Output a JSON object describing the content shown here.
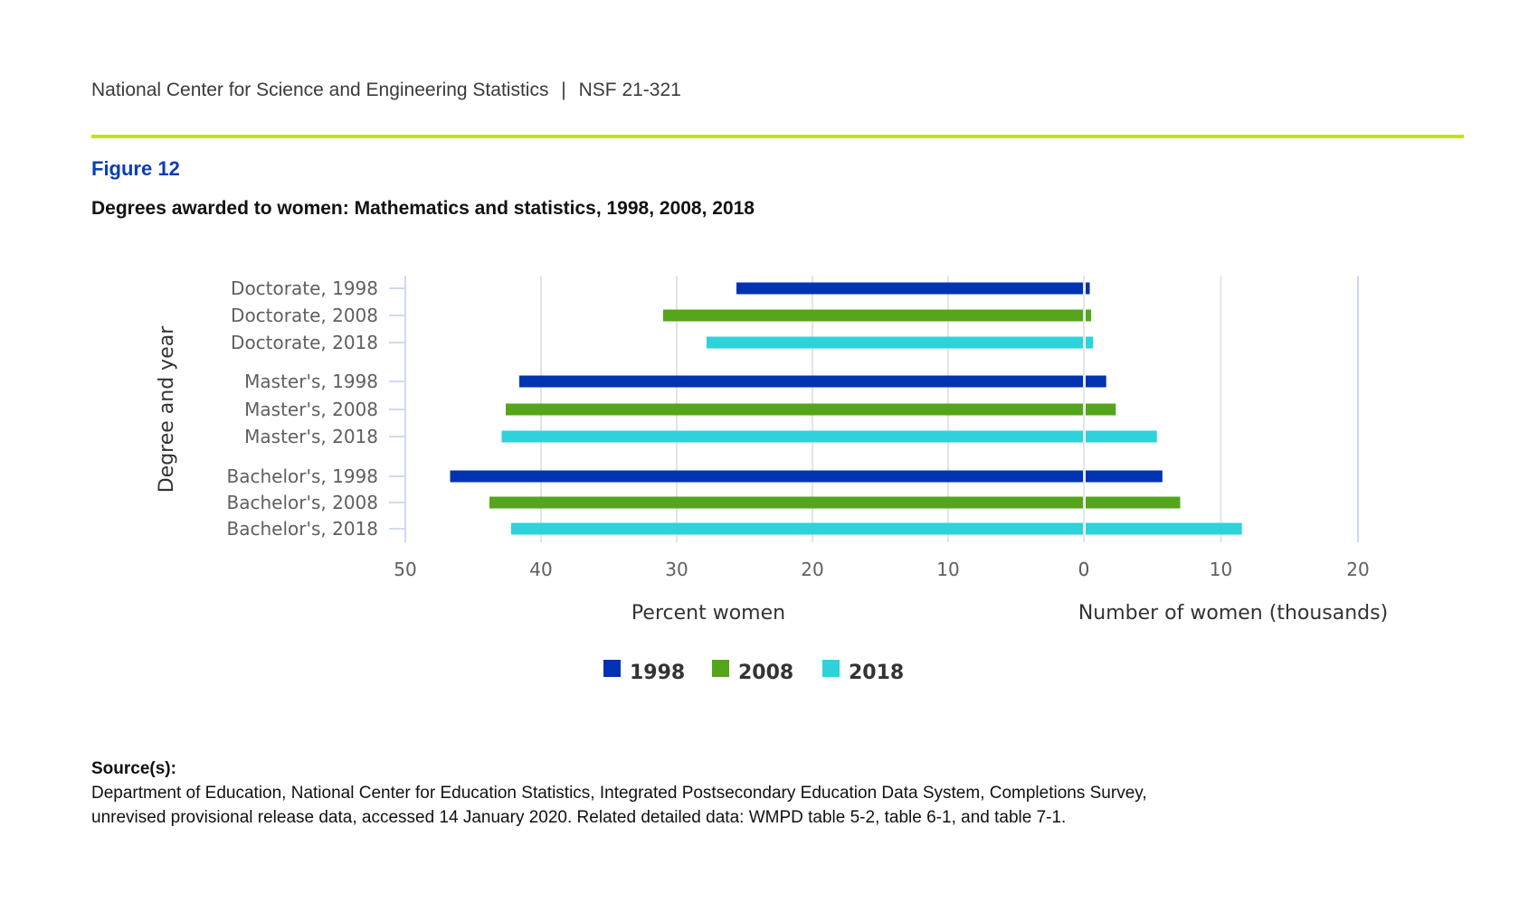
{
  "header": {
    "org": "National Center for Science and Engineering Statistics",
    "separator": "|",
    "report_id": "NSF 21-321",
    "rule_color": "#bfe31a"
  },
  "figure": {
    "label": "Figure 12",
    "title": "Degrees awarded to women: Mathematics and statistics, 1998, 2008, 2018",
    "label_color": "#0a3db5"
  },
  "chart_data": {
    "type": "bar",
    "orientation": "horizontal",
    "layout": "back-to-back (left panel percent, right panel count)",
    "title": "Degrees awarded to women: Mathematics and statistics, 1998, 2008, 2018",
    "ylabel": "Degree and year",
    "categories": [
      "Doctorate, 1998",
      "Doctorate, 2008",
      "Doctorate, 2018",
      "Master's, 1998",
      "Master's, 2008",
      "Master's, 2018",
      "Bachelor's, 1998",
      "Bachelor's, 2008",
      "Bachelor's, 2018"
    ],
    "category_years": [
      "1998",
      "2008",
      "2018",
      "1998",
      "2008",
      "2018",
      "1998",
      "2008",
      "2018"
    ],
    "left_panel": {
      "xlabel": "Percent women",
      "xlim": [
        50,
        0
      ],
      "ticks": [
        "50",
        "40",
        "30",
        "20",
        "10",
        "0"
      ],
      "tick_values": [
        50,
        40,
        30,
        20,
        10,
        0
      ],
      "values": [
        25.6,
        31.0,
        27.8,
        41.6,
        42.6,
        42.9,
        46.7,
        43.8,
        42.2
      ]
    },
    "right_panel": {
      "xlabel": "Number of women (thousands)",
      "xlim": [
        0,
        20
      ],
      "ticks": [
        "0",
        "10",
        "20"
      ],
      "tick_values": [
        0,
        10,
        20
      ],
      "values": [
        0.3,
        0.4,
        0.55,
        1.5,
        2.2,
        5.2,
        5.6,
        6.9,
        11.4
      ]
    },
    "series_colors": {
      "1998": "#0033b1",
      "2008": "#55a51c",
      "2018": "#2ed2da"
    },
    "legend": {
      "position": "bottom-center",
      "items": [
        {
          "label": "1998",
          "color": "#0033b1"
        },
        {
          "label": "2008",
          "color": "#55a51c"
        },
        {
          "label": "2018",
          "color": "#2ed2da"
        }
      ]
    },
    "grid": true
  },
  "source": {
    "heading": "Source(s):",
    "lines": [
      "Department of Education, National Center for Education Statistics, Integrated Postsecondary Education Data System, Completions Survey,",
      "unrevised provisional release data, accessed 14 January 2020. Related detailed data: WMPD table 5-2, table 6-1, and table 7-1."
    ]
  }
}
